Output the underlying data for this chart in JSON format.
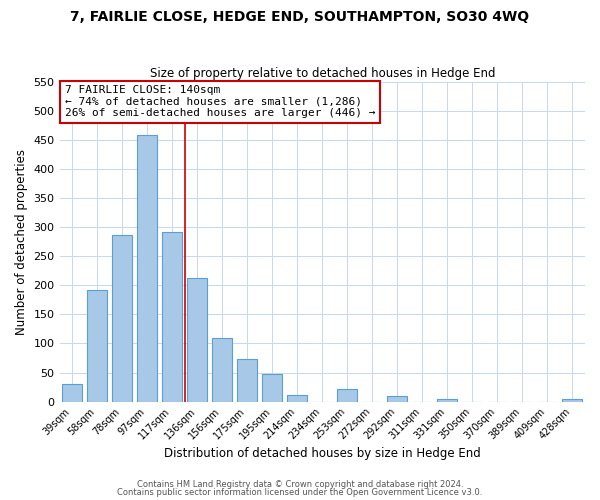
{
  "title": "7, FAIRLIE CLOSE, HEDGE END, SOUTHAMPTON, SO30 4WQ",
  "subtitle": "Size of property relative to detached houses in Hedge End",
  "xlabel": "Distribution of detached houses by size in Hedge End",
  "ylabel": "Number of detached properties",
  "bar_labels": [
    "39sqm",
    "58sqm",
    "78sqm",
    "97sqm",
    "117sqm",
    "136sqm",
    "156sqm",
    "175sqm",
    "195sqm",
    "214sqm",
    "234sqm",
    "253sqm",
    "272sqm",
    "292sqm",
    "311sqm",
    "331sqm",
    "350sqm",
    "370sqm",
    "389sqm",
    "409sqm",
    "428sqm"
  ],
  "bar_values": [
    30,
    192,
    287,
    459,
    292,
    213,
    110,
    74,
    47,
    12,
    0,
    22,
    0,
    10,
    0,
    5,
    0,
    0,
    0,
    0,
    4
  ],
  "bar_color": "#a8c8e8",
  "bar_edge_color": "#5a9fd4",
  "vline_x": 4.5,
  "vline_color": "#cc0000",
  "annotation_title": "7 FAIRLIE CLOSE: 140sqm",
  "annotation_line1": "← 74% of detached houses are smaller (1,286)",
  "annotation_line2": "26% of semi-detached houses are larger (446) →",
  "annotation_box_color": "#ffffff",
  "annotation_box_edge": "#cc0000",
  "ylim": [
    0,
    550
  ],
  "yticks": [
    0,
    50,
    100,
    150,
    200,
    250,
    300,
    350,
    400,
    450,
    500,
    550
  ],
  "footer1": "Contains HM Land Registry data © Crown copyright and database right 2024.",
  "footer2": "Contains public sector information licensed under the Open Government Licence v3.0.",
  "bg_color": "#ffffff",
  "grid_color": "#c8d8ec"
}
